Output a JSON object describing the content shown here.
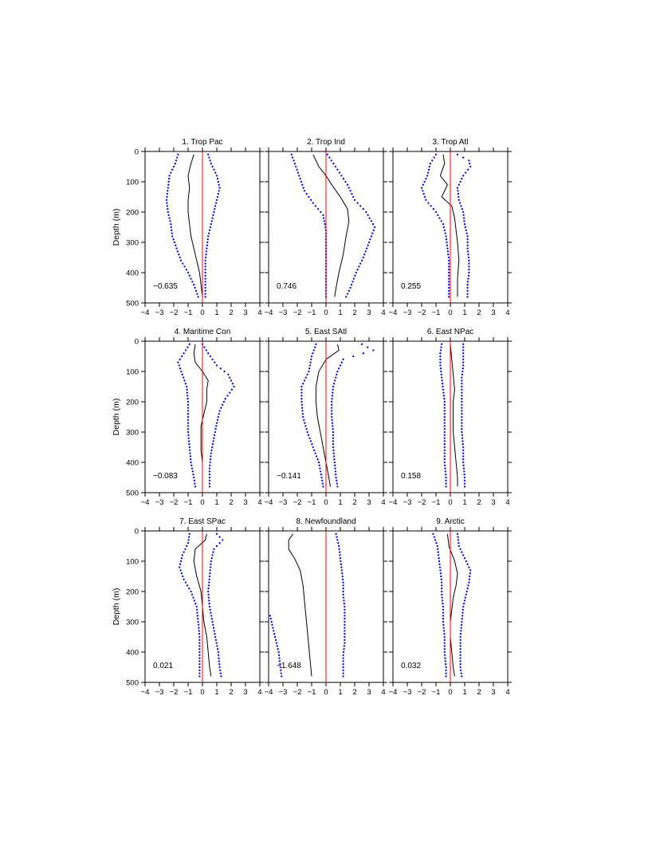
{
  "chart_data": [
    {
      "type": "line",
      "title": "1. Trop Pac",
      "ylabel": "Depth (m)",
      "value_label": "−0.635",
      "xlim": [
        -4,
        4
      ],
      "ylim": [
        500,
        0
      ],
      "x_ticks": [
        "−4",
        "−3",
        "−2",
        "−1",
        "0",
        "1",
        "2",
        "3",
        "4"
      ],
      "y_ticks": [
        "0",
        "100",
        "200",
        "300",
        "400",
        "500"
      ],
      "series": [
        {
          "style": "solid-black",
          "depth": [
            10,
            40,
            80,
            120,
            160,
            200,
            240,
            280,
            320,
            360,
            400,
            440,
            480
          ],
          "x": [
            -0.6,
            -0.8,
            -1.0,
            -0.9,
            -1.0,
            -1.0,
            -0.9,
            -0.8,
            -0.6,
            -0.4,
            -0.2,
            -0.1,
            0.0
          ]
        },
        {
          "style": "dotted-blue",
          "depth": [
            10,
            40,
            80,
            120,
            160,
            200,
            240,
            280,
            320,
            360,
            400,
            440,
            480
          ],
          "x": [
            -1.7,
            -1.9,
            -2.3,
            -2.4,
            -2.5,
            -2.4,
            -2.2,
            -2.1,
            -1.8,
            -1.5,
            -1.0,
            -0.6,
            -0.3
          ]
        },
        {
          "style": "dotted-blue",
          "depth": [
            10,
            40,
            80,
            120,
            160,
            200,
            240,
            280,
            320,
            360,
            400,
            440,
            480
          ],
          "x": [
            0.4,
            0.6,
            1.0,
            1.2,
            1.0,
            0.8,
            0.6,
            0.4,
            0.3,
            0.2,
            0.2,
            0.2,
            0.2
          ]
        },
        {
          "style": "red-zero"
        }
      ]
    },
    {
      "type": "line",
      "title": "2. Trop Ind",
      "value_label": "0.746",
      "xlim": [
        -4,
        4
      ],
      "ylim": [
        500,
        0
      ],
      "x_ticks": [
        "−4",
        "−3",
        "−2",
        "−1",
        "0",
        "1",
        "2",
        "3",
        "4"
      ],
      "y_ticks": [
        "0",
        "100",
        "200",
        "300",
        "400",
        "500"
      ],
      "series": [
        {
          "style": "solid-black",
          "depth": [
            10,
            50,
            80,
            110,
            150,
            190,
            230,
            280,
            340,
            400,
            450,
            480
          ],
          "x": [
            -0.9,
            -0.5,
            0.0,
            0.4,
            1.0,
            1.5,
            1.6,
            1.4,
            1.2,
            0.9,
            0.7,
            0.6
          ]
        },
        {
          "style": "dotted-blue",
          "depth": [
            10,
            50,
            90,
            130,
            170,
            210,
            260,
            320,
            380,
            440,
            480
          ],
          "x": [
            -2.4,
            -2.1,
            -1.8,
            -1.5,
            -0.9,
            -0.2,
            0.0,
            0.0,
            0.0,
            0.0,
            0.0
          ]
        },
        {
          "style": "dotted-blue",
          "depth": [
            10,
            60,
            110,
            160,
            200,
            250,
            300,
            350,
            400,
            450,
            480
          ],
          "x": [
            0.1,
            0.8,
            1.5,
            2.0,
            2.8,
            3.4,
            3.0,
            2.6,
            2.1,
            1.7,
            1.4
          ]
        },
        {
          "style": "red-zero"
        }
      ]
    },
    {
      "type": "line",
      "title": "3. Trop Atl",
      "value_label": "0.255",
      "xlim": [
        -4,
        4
      ],
      "ylim": [
        500,
        0
      ],
      "x_ticks": [
        "−4",
        "−3",
        "−2",
        "−1",
        "0",
        "1",
        "2",
        "3",
        "4"
      ],
      "y_ticks": [
        "0",
        "100",
        "200",
        "300",
        "400",
        "500"
      ],
      "series": [
        {
          "style": "solid-black",
          "depth": [
            10,
            40,
            80,
            110,
            150,
            180,
            220,
            260,
            300,
            360,
            420,
            480
          ],
          "x": [
            -0.5,
            -0.4,
            -0.7,
            -0.2,
            -0.6,
            0.1,
            0.3,
            0.4,
            0.5,
            0.6,
            0.5,
            0.5
          ]
        },
        {
          "style": "dotted-blue",
          "depth": [
            10,
            40,
            80,
            120,
            160,
            200,
            240,
            280,
            320,
            360,
            400,
            440,
            480
          ],
          "x": [
            -1.0,
            -1.4,
            -1.6,
            -2.0,
            -1.7,
            -1.0,
            -0.5,
            -0.3,
            -0.2,
            -0.1,
            -0.1,
            -0.1,
            -0.1
          ]
        },
        {
          "style": "dotted-blue",
          "depth": [
            10,
            30,
            50,
            80,
            120,
            160,
            200,
            240,
            280,
            320,
            360,
            400,
            440,
            480
          ],
          "x": [
            0.5,
            1.3,
            1.4,
            0.9,
            0.5,
            0.6,
            0.9,
            1.0,
            1.2,
            1.2,
            1.3,
            1.3,
            1.2,
            1.2
          ]
        },
        {
          "style": "red-zero"
        }
      ]
    },
    {
      "type": "line",
      "title": "4. Maritime Con",
      "ylabel": "Depth (m)",
      "value_label": "−0.083",
      "xlim": [
        -4,
        4
      ],
      "ylim": [
        500,
        0
      ],
      "x_ticks": [
        "−4",
        "−3",
        "−2",
        "−1",
        "0",
        "1",
        "2",
        "3",
        "4"
      ],
      "y_ticks": [
        "0",
        "100",
        "200",
        "300",
        "400",
        "500"
      ],
      "series": [
        {
          "style": "solid-black",
          "depth": [
            10,
            40,
            70,
            100,
            130,
            160,
            200,
            240,
            280,
            320,
            360,
            400,
            440,
            480
          ],
          "x": [
            -0.5,
            -0.6,
            -0.5,
            0.0,
            0.4,
            0.3,
            0.3,
            0.1,
            -0.1,
            -0.1,
            -0.1,
            0.0,
            0.0,
            0.0
          ]
        },
        {
          "style": "dotted-blue",
          "depth": [
            10,
            40,
            70,
            110,
            150,
            200,
            250,
            300,
            350,
            400,
            450,
            480
          ],
          "x": [
            -0.9,
            -1.3,
            -1.7,
            -1.4,
            -1.1,
            -1.0,
            -1.0,
            -1.0,
            -0.9,
            -0.8,
            -0.6,
            -0.5
          ]
        },
        {
          "style": "dotted-blue",
          "depth": [
            10,
            40,
            80,
            110,
            150,
            190,
            230,
            270,
            320,
            370,
            420,
            480
          ],
          "x": [
            0.0,
            0.4,
            1.0,
            1.8,
            2.2,
            1.6,
            1.2,
            1.0,
            0.8,
            0.6,
            0.5,
            0.5
          ]
        },
        {
          "style": "red-zero"
        }
      ]
    },
    {
      "type": "line",
      "title": "5. East SAtl",
      "value_label": "−0.141",
      "xlim": [
        -4,
        4
      ],
      "ylim": [
        500,
        0
      ],
      "x_ticks": [
        "−4",
        "−3",
        "−2",
        "−1",
        "0",
        "1",
        "2",
        "3",
        "4"
      ],
      "y_ticks": [
        "0",
        "100",
        "200",
        "300",
        "400",
        "500"
      ],
      "series": [
        {
          "style": "solid-black",
          "depth": [
            10,
            30,
            60,
            100,
            150,
            200,
            250,
            300,
            350,
            400,
            450,
            480
          ],
          "x": [
            0.8,
            0.9,
            0.0,
            -0.5,
            -0.7,
            -0.7,
            -0.6,
            -0.4,
            -0.2,
            0.0,
            0.2,
            0.3
          ]
        },
        {
          "style": "dotted-blue",
          "depth": [
            10,
            50,
            100,
            150,
            200,
            250,
            300,
            350,
            400,
            450,
            480
          ],
          "x": [
            -0.7,
            -1.0,
            -1.2,
            -1.7,
            -1.7,
            -1.6,
            -1.3,
            -0.9,
            -0.5,
            -0.3,
            -0.2
          ]
        },
        {
          "style": "dotted-blue",
          "depth": [
            10,
            30,
            60,
            100,
            150,
            200,
            250,
            300,
            350,
            400,
            450,
            480
          ],
          "x": [
            2.5,
            3.3,
            1.2,
            0.8,
            0.5,
            0.4,
            0.4,
            0.5,
            0.5,
            0.6,
            0.7,
            0.8
          ]
        },
        {
          "style": "red-zero"
        }
      ]
    },
    {
      "type": "line",
      "title": "6. East NPac",
      "value_label": "0.158",
      "xlim": [
        -4,
        4
      ],
      "ylim": [
        500,
        0
      ],
      "x_ticks": [
        "−4",
        "−3",
        "−2",
        "−1",
        "0",
        "1",
        "2",
        "3",
        "4"
      ],
      "y_ticks": [
        "0",
        "100",
        "200",
        "300",
        "400",
        "500"
      ],
      "series": [
        {
          "style": "solid-black",
          "depth": [
            10,
            60,
            110,
            160,
            200,
            250,
            300,
            350,
            400,
            450,
            480
          ],
          "x": [
            0.0,
            0.1,
            0.2,
            0.3,
            0.2,
            0.2,
            0.2,
            0.3,
            0.4,
            0.5,
            0.5
          ]
        },
        {
          "style": "dotted-blue",
          "depth": [
            10,
            40,
            80,
            120,
            160,
            200,
            250,
            300,
            350,
            400,
            450,
            480
          ],
          "x": [
            -0.6,
            -0.7,
            -0.7,
            -0.6,
            -0.5,
            -0.4,
            -0.4,
            -0.4,
            -0.4,
            -0.4,
            -0.3,
            -0.3
          ]
        },
        {
          "style": "dotted-blue",
          "depth": [
            10,
            40,
            80,
            120,
            160,
            200,
            250,
            300,
            350,
            400,
            450,
            480
          ],
          "x": [
            0.9,
            0.9,
            0.9,
            0.8,
            0.8,
            0.8,
            0.8,
            0.8,
            0.9,
            0.9,
            1.0,
            1.0
          ]
        },
        {
          "style": "red-zero"
        }
      ]
    },
    {
      "type": "line",
      "title": "7. East SPac",
      "ylabel": "Depth (m)",
      "value_label": "0.021",
      "xlim": [
        -4,
        4
      ],
      "ylim": [
        500,
        0
      ],
      "x_ticks": [
        "−4",
        "−3",
        "−2",
        "−1",
        "0",
        "1",
        "2",
        "3",
        "4"
      ],
      "y_ticks": [
        "0",
        "100",
        "200",
        "300",
        "400",
        "500"
      ],
      "series": [
        {
          "style": "solid-black",
          "depth": [
            10,
            30,
            60,
            100,
            150,
            200,
            250,
            300,
            350,
            400,
            450,
            480
          ],
          "x": [
            0.3,
            0.2,
            -0.5,
            -0.6,
            -0.4,
            -0.1,
            0.0,
            0.1,
            0.3,
            0.4,
            0.5,
            0.6
          ]
        },
        {
          "style": "dotted-blue",
          "depth": [
            10,
            40,
            80,
            120,
            160,
            200,
            250,
            300,
            350,
            400,
            450,
            480
          ],
          "x": [
            -0.9,
            -1.0,
            -1.4,
            -1.6,
            -1.3,
            -0.8,
            -0.4,
            -0.3,
            -0.2,
            -0.2,
            -0.2,
            -0.2
          ]
        },
        {
          "style": "dotted-blue",
          "depth": [
            10,
            30,
            60,
            100,
            150,
            200,
            250,
            300,
            350,
            400,
            450,
            480
          ],
          "x": [
            1.0,
            1.4,
            0.8,
            0.6,
            0.5,
            0.4,
            0.5,
            0.7,
            0.9,
            1.1,
            1.2,
            1.3
          ]
        },
        {
          "style": "red-zero"
        }
      ]
    },
    {
      "type": "line",
      "title": "8. Newfoundland",
      "value_label": "−1.648",
      "xlim": [
        -4,
        4
      ],
      "ylim": [
        500,
        0
      ],
      "x_ticks": [
        "−4",
        "−3",
        "−2",
        "−1",
        "0",
        "1",
        "2",
        "3",
        "4"
      ],
      "y_ticks": [
        "0",
        "100",
        "200",
        "300",
        "400",
        "500"
      ],
      "series": [
        {
          "style": "solid-black",
          "depth": [
            10,
            30,
            60,
            90,
            130,
            180,
            230,
            280,
            330,
            380,
            430,
            480
          ],
          "x": [
            -2.3,
            -2.6,
            -2.6,
            -2.2,
            -1.8,
            -1.6,
            -1.5,
            -1.4,
            -1.3,
            -1.2,
            -1.1,
            -1.0
          ]
        },
        {
          "style": "dotted-blue",
          "depth": [
            280,
            320,
            360,
            400,
            440,
            480
          ],
          "x": [
            -3.9,
            -3.7,
            -3.5,
            -3.3,
            -3.2,
            -3.1
          ]
        },
        {
          "style": "dotted-blue",
          "depth": [
            10,
            50,
            90,
            130,
            170,
            210,
            250,
            290,
            330,
            370,
            410,
            450,
            480
          ],
          "x": [
            0.7,
            0.9,
            1.0,
            1.1,
            1.2,
            1.2,
            1.3,
            1.3,
            1.3,
            1.3,
            1.2,
            1.2,
            1.2
          ]
        },
        {
          "style": "red-zero"
        }
      ]
    },
    {
      "type": "line",
      "title": "9. Arctic",
      "value_label": "0.032",
      "xlim": [
        -4,
        4
      ],
      "ylim": [
        500,
        0
      ],
      "x_ticks": [
        "−4",
        "−3",
        "−2",
        "−1",
        "0",
        "1",
        "2",
        "3",
        "4"
      ],
      "y_ticks": [
        "0",
        "100",
        "200",
        "300",
        "400",
        "500"
      ],
      "series": [
        {
          "style": "solid-black",
          "depth": [
            10,
            50,
            100,
            140,
            180,
            220,
            260,
            300,
            350,
            400,
            450,
            480
          ],
          "x": [
            -0.2,
            -0.1,
            0.3,
            0.5,
            0.4,
            0.2,
            0.1,
            0.0,
            0.0,
            0.1,
            0.2,
            0.3
          ]
        },
        {
          "style": "dotted-blue",
          "depth": [
            10,
            50,
            90,
            130,
            170,
            210,
            250,
            300,
            350,
            400,
            450,
            480
          ],
          "x": [
            -1.2,
            -0.9,
            -0.8,
            -0.7,
            -0.6,
            -0.6,
            -0.5,
            -0.5,
            -0.4,
            -0.4,
            -0.3,
            -0.3
          ]
        },
        {
          "style": "dotted-blue",
          "depth": [
            10,
            50,
            90,
            130,
            170,
            210,
            250,
            300,
            350,
            400,
            450,
            480
          ],
          "x": [
            0.5,
            0.6,
            1.0,
            1.4,
            1.3,
            1.1,
            0.9,
            0.8,
            0.7,
            0.7,
            0.7,
            0.8
          ]
        },
        {
          "style": "red-zero"
        }
      ]
    }
  ]
}
